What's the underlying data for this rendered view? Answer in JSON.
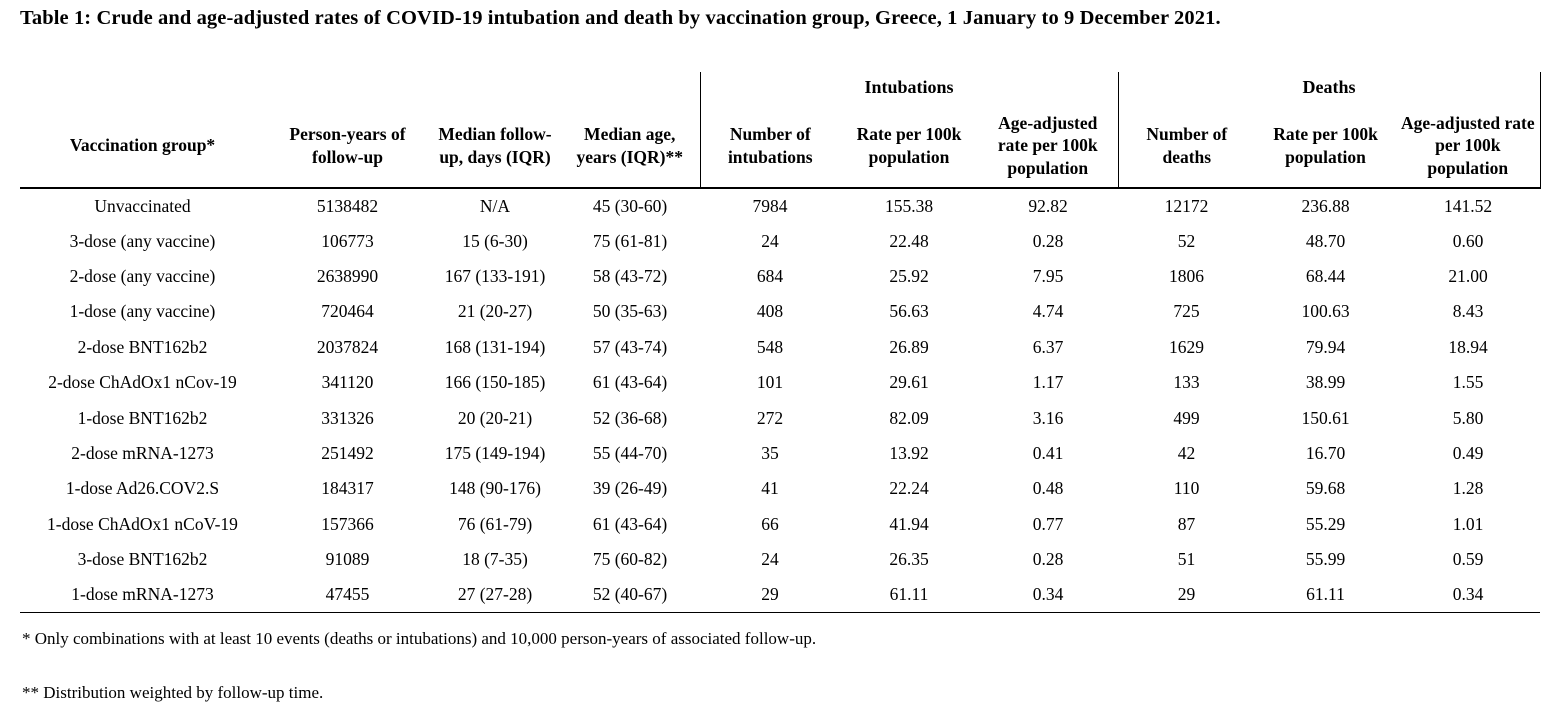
{
  "title": "Table 1: Crude and age-adjusted rates of COVID-19 intubation and death by vaccination group, Greece, 1 January to 9 December 2021.",
  "table": {
    "column_headers": [
      "Vaccination group*",
      "Person-years of follow-up",
      "Median follow-up, days (IQR)",
      "Median age, years (IQR)**"
    ],
    "group_headers": [
      {
        "label": "Intubations",
        "columns": [
          "Number of intubations",
          "Rate per 100k population",
          "Age-adjusted rate per 100k population"
        ]
      },
      {
        "label": "Deaths",
        "columns": [
          "Number of deaths",
          "Rate per 100k population",
          "Age-adjusted rate per 100k population"
        ]
      }
    ],
    "rows": [
      [
        "Unvaccinated",
        "5138482",
        "N/A",
        "45 (30-60)",
        "7984",
        "155.38",
        "92.82",
        "12172",
        "236.88",
        "141.52"
      ],
      [
        "3-dose (any vaccine)",
        "106773",
        "15 (6-30)",
        "75 (61-81)",
        "24",
        "22.48",
        "0.28",
        "52",
        "48.70",
        "0.60"
      ],
      [
        "2-dose (any vaccine)",
        "2638990",
        "167 (133-191)",
        "58 (43-72)",
        "684",
        "25.92",
        "7.95",
        "1806",
        "68.44",
        "21.00"
      ],
      [
        "1-dose (any vaccine)",
        "720464",
        "21 (20-27)",
        "50 (35-63)",
        "408",
        "56.63",
        "4.74",
        "725",
        "100.63",
        "8.43"
      ],
      [
        "2-dose BNT162b2",
        "2037824",
        "168 (131-194)",
        "57 (43-74)",
        "548",
        "26.89",
        "6.37",
        "1629",
        "79.94",
        "18.94"
      ],
      [
        "2-dose ChAdOx1 nCov-19",
        "341120",
        "166 (150-185)",
        "61 (43-64)",
        "101",
        "29.61",
        "1.17",
        "133",
        "38.99",
        "1.55"
      ],
      [
        "1-dose BNT162b2",
        "331326",
        "20 (20-21)",
        "52 (36-68)",
        "272",
        "82.09",
        "3.16",
        "499",
        "150.61",
        "5.80"
      ],
      [
        "2-dose mRNA-1273",
        "251492",
        "175 (149-194)",
        "55 (44-70)",
        "35",
        "13.92",
        "0.41",
        "42",
        "16.70",
        "0.49"
      ],
      [
        "1-dose Ad26.COV2.S",
        "184317",
        "148 (90-176)",
        "39 (26-49)",
        "41",
        "22.24",
        "0.48",
        "110",
        "59.68",
        "1.28"
      ],
      [
        "1-dose ChAdOx1 nCoV-19",
        "157366",
        "76 (61-79)",
        "61 (43-64)",
        "66",
        "41.94",
        "0.77",
        "87",
        "55.29",
        "1.01"
      ],
      [
        "3-dose BNT162b2",
        "91089",
        "18 (7-35)",
        "75 (60-82)",
        "24",
        "26.35",
        "0.28",
        "51",
        "55.99",
        "0.59"
      ],
      [
        "1-dose mRNA-1273",
        "47455",
        "27 (27-28)",
        "52 (40-67)",
        "29",
        "61.11",
        "0.34",
        "29",
        "61.11",
        "0.34"
      ]
    ]
  },
  "footnotes": [
    "* Only combinations with at least 10 events (deaths or intubations) and 10,000 person-years of associated follow-up.",
    "** Distribution weighted by follow-up time."
  ]
}
